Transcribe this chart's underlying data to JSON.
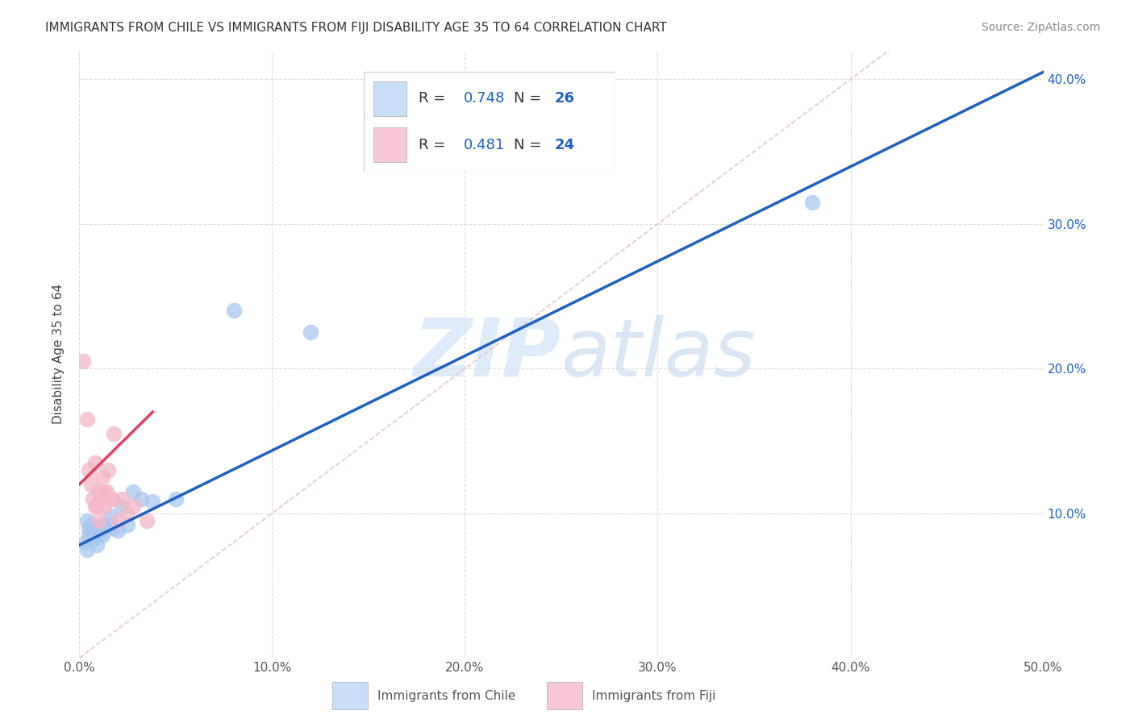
{
  "title": "IMMIGRANTS FROM CHILE VS IMMIGRANTS FROM FIJI DISABILITY AGE 35 TO 64 CORRELATION CHART",
  "source": "Source: ZipAtlas.com",
  "xlabel_label": "Immigrants from Chile",
  "ylabel_label": "Disability Age 35 to 64",
  "xlim": [
    0.0,
    0.5
  ],
  "ylim": [
    0.0,
    0.42
  ],
  "xticks": [
    0.0,
    0.1,
    0.2,
    0.3,
    0.4,
    0.5
  ],
  "xticklabels": [
    "0.0%",
    "10.0%",
    "20.0%",
    "30.0%",
    "40.0%",
    "50.0%"
  ],
  "yticks": [
    0.0,
    0.1,
    0.2,
    0.3,
    0.4
  ],
  "yticklabels": [
    "",
    "10.0%",
    "20.0%",
    "30.0%",
    "40.0%"
  ],
  "chile_color": "#a8c8f0",
  "fiji_color": "#f4b8c8",
  "chile_line_color": "#2060c0",
  "fiji_line_color": "#e04060",
  "diagonal_color": "#e8c0c8",
  "legend_box_chile": "#c8dff8",
  "legend_box_fiji": "#f8c8d8",
  "R_chile": 0.748,
  "N_chile": 26,
  "R_fiji": 0.481,
  "N_fiji": 24,
  "watermark_zip": "ZIP",
  "watermark_atlas": "atlas",
  "chile_scatter_x": [
    0.003,
    0.004,
    0.004,
    0.005,
    0.005,
    0.006,
    0.007,
    0.008,
    0.009,
    0.01,
    0.011,
    0.012,
    0.013,
    0.015,
    0.016,
    0.018,
    0.02,
    0.022,
    0.025,
    0.028,
    0.032,
    0.038,
    0.05,
    0.08,
    0.12,
    0.38
  ],
  "chile_scatter_y": [
    0.08,
    0.095,
    0.075,
    0.09,
    0.085,
    0.092,
    0.082,
    0.085,
    0.078,
    0.088,
    0.092,
    0.085,
    0.088,
    0.092,
    0.098,
    0.09,
    0.088,
    0.105,
    0.092,
    0.115,
    0.11,
    0.108,
    0.11,
    0.24,
    0.225,
    0.315
  ],
  "fiji_scatter_x": [
    0.002,
    0.004,
    0.005,
    0.006,
    0.007,
    0.008,
    0.008,
    0.009,
    0.01,
    0.01,
    0.011,
    0.012,
    0.013,
    0.013,
    0.014,
    0.015,
    0.016,
    0.017,
    0.018,
    0.02,
    0.022,
    0.025,
    0.028,
    0.035
  ],
  "fiji_scatter_y": [
    0.205,
    0.165,
    0.13,
    0.12,
    0.11,
    0.135,
    0.105,
    0.105,
    0.115,
    0.095,
    0.11,
    0.125,
    0.115,
    0.105,
    0.115,
    0.13,
    0.11,
    0.11,
    0.155,
    0.095,
    0.11,
    0.1,
    0.105,
    0.095
  ],
  "chile_line_x": [
    0.0,
    0.5
  ],
  "chile_line_y": [
    0.078,
    0.405
  ],
  "fiji_line_x": [
    0.0,
    0.038
  ],
  "fiji_line_y": [
    0.12,
    0.17
  ]
}
